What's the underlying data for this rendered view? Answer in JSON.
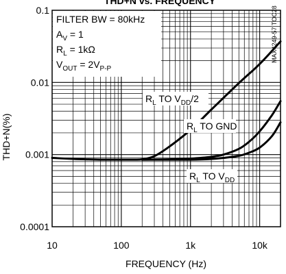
{
  "chart_data": {
    "type": "line",
    "title": "THD+N vs. FREQUENCY",
    "xlabel": "FREQUENCY (Hz)",
    "ylabel": "THD+N(%)",
    "xscale": "log",
    "yscale": "log",
    "xlim": [
      10,
      20000
    ],
    "ylim": [
      0.0001,
      0.1
    ],
    "grid": true,
    "x_ticks": [
      {
        "value": 10,
        "label": "10"
      },
      {
        "value": 100,
        "label": "100"
      },
      {
        "value": 1000,
        "label": "1k"
      },
      {
        "value": 10000,
        "label": "10k"
      }
    ],
    "y_ticks": [
      {
        "value": 0.1,
        "label": "0.1"
      },
      {
        "value": 0.01,
        "label": "0.01"
      },
      {
        "value": 0.001,
        "label": "0.001"
      },
      {
        "value": 0.0001,
        "label": "0.0001"
      }
    ],
    "conditions": [
      {
        "key": "filter",
        "main": "FILTER BW = 80kHz"
      },
      {
        "key": "av",
        "main": "A",
        "sub": "V",
        "rest": " = 1"
      },
      {
        "key": "rl",
        "main": "R",
        "sub": "L",
        "rest": " = 1kΩ"
      },
      {
        "key": "vout",
        "main": "V",
        "sub": "OUT",
        "rest": " = 2V",
        "sub2": "P-P"
      }
    ],
    "side_label": "MAX4249-57 TOC28",
    "series": [
      {
        "name": "RL TO VDD/2",
        "label_main": "R",
        "label_sub": "L",
        "label_mid": " TO V",
        "label_sub2": "DD",
        "label_end": "/2",
        "x": [
          10,
          20,
          50,
          100,
          150,
          200,
          300,
          500,
          1000,
          2000,
          5000,
          10000,
          20000
        ],
        "y": [
          0.0009,
          0.00087,
          0.00085,
          0.00085,
          0.00085,
          0.00086,
          0.00095,
          0.0013,
          0.0022,
          0.0042,
          0.0098,
          0.018,
          0.037
        ]
      },
      {
        "name": "RL TO GND",
        "label_main": "R",
        "label_sub": "L",
        "label_mid": " TO GND",
        "label_sub2": "",
        "label_end": "",
        "x": [
          200,
          500,
          1000,
          2000,
          3000,
          5000,
          7000,
          10000,
          15000,
          20000
        ],
        "y": [
          0.00085,
          0.00086,
          0.00088,
          0.00093,
          0.001,
          0.0012,
          0.0015,
          0.0021,
          0.0035,
          0.0055
        ]
      },
      {
        "name": "RL TO VDD",
        "label_main": "R",
        "label_sub": "L",
        "label_mid": " TO V",
        "label_sub2": "DD",
        "label_end": "",
        "x": [
          200,
          1000,
          2000,
          3000,
          5000,
          7000,
          10000,
          15000,
          20000
        ],
        "y": [
          0.00085,
          0.00085,
          0.00087,
          0.0009,
          0.00096,
          0.00106,
          0.00125,
          0.0018,
          0.0028
        ]
      }
    ]
  }
}
